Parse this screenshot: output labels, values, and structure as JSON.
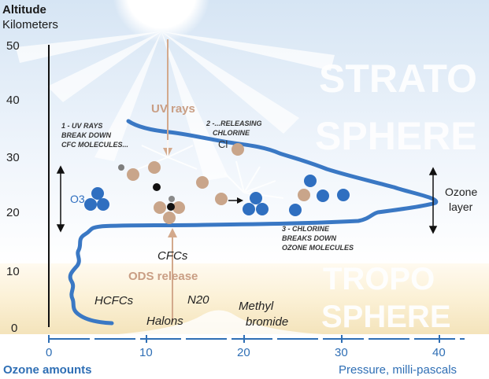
{
  "axes": {
    "y_title_line1": "Altitude",
    "y_title_line2": "Kilometers",
    "y_ticks": [
      "50",
      "40",
      "30",
      "20",
      "10",
      "0"
    ],
    "x_ticks": [
      "0",
      "10",
      "20",
      "30",
      "40"
    ],
    "x_title_left": "Ozone amounts",
    "x_title_right": "Pressure, milli-pascals"
  },
  "layers": {
    "strato_line1": "STRATO",
    "strato_line2": "SPHERE",
    "tropo_line1": "TROPO",
    "tropo_line2": "SPHERE"
  },
  "labels": {
    "uv_rays": "UV rays",
    "step1_line1": "1 - UV RAYS",
    "step1_line2": "BREAK DOWN",
    "step1_line3": "CFC MOLECULES...",
    "step2_line1": "2 -...RELEASING",
    "step2_line2": "CHLORINE",
    "step3_line1": "3 - CHLORINE",
    "step3_line2": "BREAKS DOWN",
    "step3_line3": "OZONE MOLECULES",
    "cl": "Cl",
    "o3": "O3",
    "ozone_layer_line1": "Ozone",
    "ozone_layer_line2": "layer",
    "cfcs": "CFCs",
    "ods_release": "ODS release",
    "hcfcs": "HCFCs",
    "n2o": "N20",
    "halons": "Halons",
    "methyl_line1": "Methyl",
    "methyl_line2": "bromide"
  },
  "colors": {
    "axis_blue": "#2f6fb5",
    "curve_blue": "#3a78c4",
    "ozone_blue": "#2f6fc0",
    "tan": "#c9a58a",
    "uv_text": "#c99e84",
    "sky_top": "#dbe8f5",
    "sky_bottom": "#ffffff",
    "tropo_top": "#fdf6e3",
    "tropo_bottom": "#f6e7c0"
  }
}
